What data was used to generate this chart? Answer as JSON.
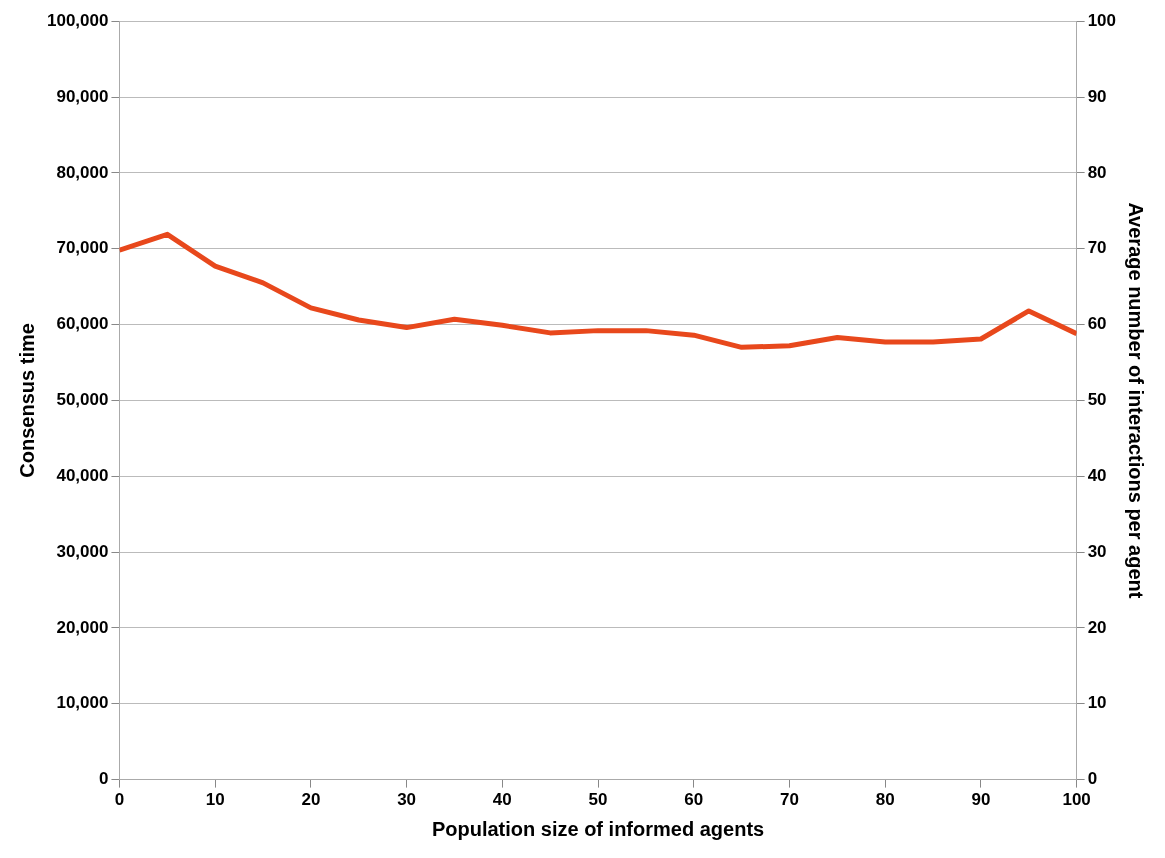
{
  "chart_data": {
    "type": "line",
    "xlabel": "Population size of informed agents",
    "ylabel": "Consensus time",
    "y2label": "Average number of interactions per agent",
    "x": [
      0,
      5,
      10,
      15,
      20,
      25,
      30,
      35,
      40,
      45,
      50,
      55,
      60,
      65,
      70,
      75,
      80,
      85,
      90,
      95,
      100
    ],
    "series": [
      {
        "color": "#e8481c",
        "values": [
          69800,
          71900,
          67700,
          65500,
          62200,
          60600,
          59600,
          60700,
          59900,
          58900,
          59200,
          59200,
          58600,
          57000,
          57200,
          58300,
          57700,
          57700,
          58100,
          61800,
          58800
        ]
      }
    ],
    "xlim": [
      0,
      100
    ],
    "xticks": [
      0,
      10,
      20,
      30,
      40,
      50,
      60,
      70,
      80,
      90,
      100
    ],
    "ylim": [
      0,
      100000
    ],
    "yticks": [
      {
        "value": 0,
        "label": "0"
      },
      {
        "value": 10000,
        "label": "10,000"
      },
      {
        "value": 20000,
        "label": "20,000"
      },
      {
        "value": 30000,
        "label": "30,000"
      },
      {
        "value": 40000,
        "label": "40,000"
      },
      {
        "value": 50000,
        "label": "50,000"
      },
      {
        "value": 60000,
        "label": "60,000"
      },
      {
        "value": 70000,
        "label": "70,000"
      },
      {
        "value": 80000,
        "label": "80,000"
      },
      {
        "value": 90000,
        "label": "90,000"
      },
      {
        "value": 100000,
        "label": "100,000"
      }
    ],
    "y2lim": [
      0,
      100
    ],
    "y2ticks": [
      0,
      10,
      20,
      30,
      40,
      50,
      60,
      70,
      80,
      90,
      100
    ],
    "grid": "y",
    "legend": false,
    "marker": "none",
    "line_style": "solid"
  }
}
